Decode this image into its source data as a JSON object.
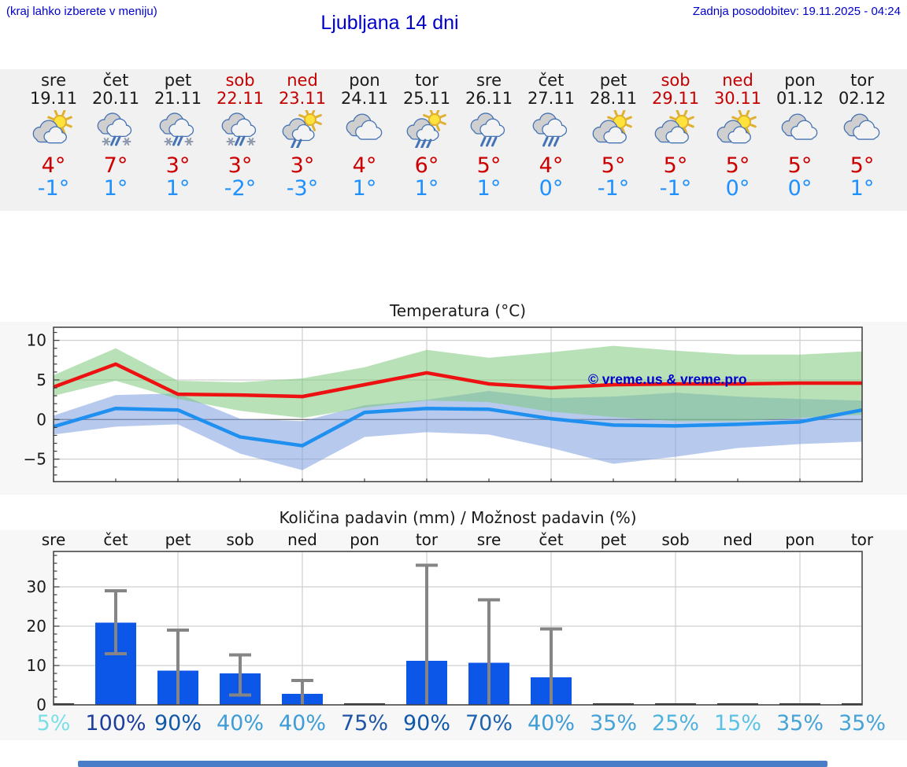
{
  "header": {
    "hint": "(kraj lahko izberete v meniju)",
    "title": "Ljubljana 14 dni",
    "updated": "Zadnja posodobitev: 19.11.2025 - 04:24"
  },
  "colors": {
    "header_text": "#0000cc",
    "strip_background": "#f1f1f1",
    "chart_background": "#f7f7f7",
    "weekend": "#c40000",
    "high_temp": "#cc0000",
    "low_temp": "#1e90ff",
    "max_line": "#ee1111",
    "min_line": "#2090f0",
    "max_band": "#7ec87e",
    "min_band": "#7b9fe0",
    "bar": "#0c56e8",
    "error_bar": "#858585",
    "watermark": "#0000cc"
  },
  "days": [
    {
      "name": "sre",
      "date": "19.11",
      "weekend": false,
      "icon": "sun-cloud",
      "high": "4°",
      "low": "-1°"
    },
    {
      "name": "čet",
      "date": "20.11",
      "weekend": false,
      "icon": "cloud-rain-snow",
      "high": "7°",
      "low": "1°"
    },
    {
      "name": "pet",
      "date": "21.11",
      "weekend": false,
      "icon": "cloud-rain-snow",
      "high": "3°",
      "low": "1°"
    },
    {
      "name": "sob",
      "date": "22.11",
      "weekend": true,
      "icon": "cloud-rain-snow",
      "high": "3°",
      "low": "-2°"
    },
    {
      "name": "ned",
      "date": "23.11",
      "weekend": true,
      "icon": "sun-cloud-rain",
      "high": "3°",
      "low": "-3°"
    },
    {
      "name": "pon",
      "date": "24.11",
      "weekend": false,
      "icon": "cloud",
      "high": "4°",
      "low": "1°"
    },
    {
      "name": "tor",
      "date": "25.11",
      "weekend": false,
      "icon": "sun-cloud-showers",
      "high": "6°",
      "low": "1°"
    },
    {
      "name": "sre",
      "date": "26.11",
      "weekend": false,
      "icon": "cloud-rain",
      "high": "5°",
      "low": "1°"
    },
    {
      "name": "čet",
      "date": "27.11",
      "weekend": false,
      "icon": "cloud-rain",
      "high": "4°",
      "low": "0°"
    },
    {
      "name": "pet",
      "date": "28.11",
      "weekend": false,
      "icon": "sun-cloud",
      "high": "5°",
      "low": "-1°"
    },
    {
      "name": "sob",
      "date": "29.11",
      "weekend": true,
      "icon": "sun-cloud",
      "high": "5°",
      "low": "-1°"
    },
    {
      "name": "ned",
      "date": "30.11",
      "weekend": true,
      "icon": "sun-cloud",
      "high": "5°",
      "low": "0°"
    },
    {
      "name": "pon",
      "date": "01.12",
      "weekend": false,
      "icon": "cloud",
      "high": "5°",
      "low": "0°"
    },
    {
      "name": "tor",
      "date": "02.12",
      "weekend": false,
      "icon": "cloud",
      "high": "5°",
      "low": "1°"
    }
  ],
  "chart_data": [
    {
      "type": "line",
      "title": "Temperatura (°C)",
      "watermark": "© vreme.us & vreme.pro",
      "categories": [
        "sre 19.11",
        "čet 20.11",
        "pet 21.11",
        "sob 22.11",
        "ned 23.11",
        "pon 24.11",
        "tor 25.11",
        "sre 26.11",
        "čet 27.11",
        "pet 28.11",
        "sob 29.11",
        "ned 30.11",
        "pon 01.12",
        "tor 02.12"
      ],
      "ylim": [
        -7.85,
        11.68
      ],
      "yticks": [
        10,
        5,
        0,
        -5
      ],
      "grid": true,
      "legend_position": "none",
      "series": [
        {
          "name": "max-temperature",
          "color": "#ee1111",
          "values": [
            4.1,
            7.0,
            3.2,
            3.1,
            2.9,
            4.4,
            5.9,
            4.5,
            4.0,
            4.4,
            4.5,
            4.5,
            4.6,
            4.6
          ]
        },
        {
          "name": "min-temperature",
          "color": "#2090f0",
          "values": [
            -0.9,
            1.4,
            1.2,
            -2.2,
            -3.3,
            0.9,
            1.4,
            1.3,
            0.1,
            -0.7,
            -0.8,
            -0.6,
            -0.3,
            1.2
          ]
        }
      ],
      "bands": [
        {
          "name": "max-uncertainty",
          "color": "#7ec87e",
          "upper": [
            5.6,
            9.0,
            4.9,
            4.7,
            5.2,
            6.6,
            8.8,
            7.8,
            8.5,
            9.3,
            8.7,
            8.2,
            8.2,
            8.6
          ],
          "lower": [
            3.0,
            4.9,
            2.6,
            1.1,
            0.2,
            1.5,
            2.4,
            2.2,
            1.0,
            0.3,
            -0.2,
            -0.2,
            0.2,
            0.6
          ]
        },
        {
          "name": "min-uncertainty",
          "color": "#7b9fe0",
          "upper": [
            0.5,
            3.1,
            3.3,
            0.1,
            -0.2,
            1.8,
            2.5,
            3.6,
            2.7,
            2.9,
            3.4,
            2.9,
            2.6,
            2.4
          ],
          "lower": [
            -1.9,
            -0.9,
            -0.6,
            -4.3,
            -6.4,
            -2.2,
            -1.6,
            -1.9,
            -3.6,
            -5.6,
            -4.7,
            -3.6,
            -3.1,
            -2.8
          ]
        }
      ]
    },
    {
      "type": "bar",
      "title": "Količina padavin (mm) / Možnost padavin (%)",
      "categories": [
        "sre",
        "čet",
        "pet",
        "sob",
        "ned",
        "pon",
        "tor",
        "sre",
        "čet",
        "pet",
        "sob",
        "ned",
        "pon",
        "tor"
      ],
      "values": [
        0.2,
        20.9,
        8.7,
        8.0,
        2.8,
        0.15,
        11.2,
        10.7,
        7.0,
        0.15,
        0.15,
        0.15,
        0.15,
        0.15
      ],
      "error_low": [
        null,
        13,
        0,
        2.5,
        0,
        null,
        0,
        0,
        0,
        null,
        null,
        null,
        null,
        null
      ],
      "error_high": [
        null,
        29,
        19,
        12.7,
        6.2,
        null,
        35.5,
        26.7,
        19.3,
        null,
        null,
        null,
        null,
        null
      ],
      "bar_color": "#0c56e8",
      "ylim": [
        0,
        39
      ],
      "yticks": [
        0,
        10,
        20,
        30
      ],
      "grid": true,
      "probabilities": [
        {
          "label": "5%",
          "color": "#7bdee8"
        },
        {
          "label": "100%",
          "color": "#1e3e9b"
        },
        {
          "label": "90%",
          "color": "#1159a8"
        },
        {
          "label": "40%",
          "color": "#3e9cd6"
        },
        {
          "label": "40%",
          "color": "#3e9cd6"
        },
        {
          "label": "75%",
          "color": "#1e55a5"
        },
        {
          "label": "90%",
          "color": "#1159a8"
        },
        {
          "label": "70%",
          "color": "#1e62ae"
        },
        {
          "label": "40%",
          "color": "#3e9cd6"
        },
        {
          "label": "35%",
          "color": "#45a3d8"
        },
        {
          "label": "25%",
          "color": "#4fb2de"
        },
        {
          "label": "15%",
          "color": "#5bc2e6"
        },
        {
          "label": "35%",
          "color": "#45a3d8"
        },
        {
          "label": "35%",
          "color": "#45a3d8"
        }
      ]
    }
  ]
}
